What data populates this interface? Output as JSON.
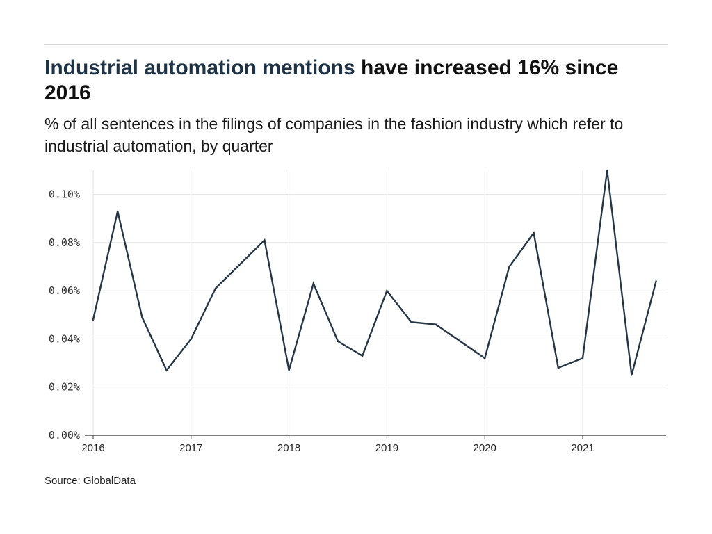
{
  "header": {
    "title_highlight": "Industrial automation mentions",
    "title_rest": " have increased 16% since 2016",
    "subtitle": "% of all sentences in the filings of companies in the fashion industry which refer to industrial automation, by quarter"
  },
  "footer": {
    "source": "Source: GlobalData"
  },
  "colors": {
    "title_accent": "#1f3347",
    "line": "#253747",
    "grid": "#e3e3e3"
  },
  "chart_data": {
    "type": "line",
    "title": "Industrial automation mentions have increased 16% since 2016",
    "subtitle": "% of all sentences in the filings of companies in the fashion industry which refer to industrial automation, by quarter",
    "xlabel": "",
    "ylabel": "",
    "x": [
      "2016 Q1",
      "2016 Q2",
      "2016 Q3",
      "2016 Q4",
      "2017 Q1",
      "2017 Q2",
      "2017 Q3",
      "2017 Q4",
      "2018 Q1",
      "2018 Q2",
      "2018 Q3",
      "2018 Q4",
      "2019 Q1",
      "2019 Q2",
      "2019 Q3",
      "2019 Q4",
      "2020 Q1",
      "2020 Q2",
      "2020 Q3",
      "2020 Q4",
      "2021 Q1",
      "2021 Q2",
      "2021 Q3",
      "2021 Q4"
    ],
    "values": [
      0.048,
      0.093,
      0.049,
      0.027,
      0.04,
      0.061,
      0.071,
      0.081,
      0.027,
      0.063,
      0.039,
      0.033,
      0.06,
      0.047,
      0.046,
      0.039,
      0.032,
      0.07,
      0.084,
      0.028,
      0.032,
      0.11,
      0.025,
      0.064
    ],
    "x_ticks": [
      "2016",
      "2017",
      "2018",
      "2019",
      "2020",
      "2021"
    ],
    "y_ticks": [
      "0.00%",
      "0.02%",
      "0.04%",
      "0.06%",
      "0.08%",
      "0.10%"
    ],
    "ylim": [
      0,
      0.11
    ],
    "grid": true,
    "legend": "none"
  }
}
